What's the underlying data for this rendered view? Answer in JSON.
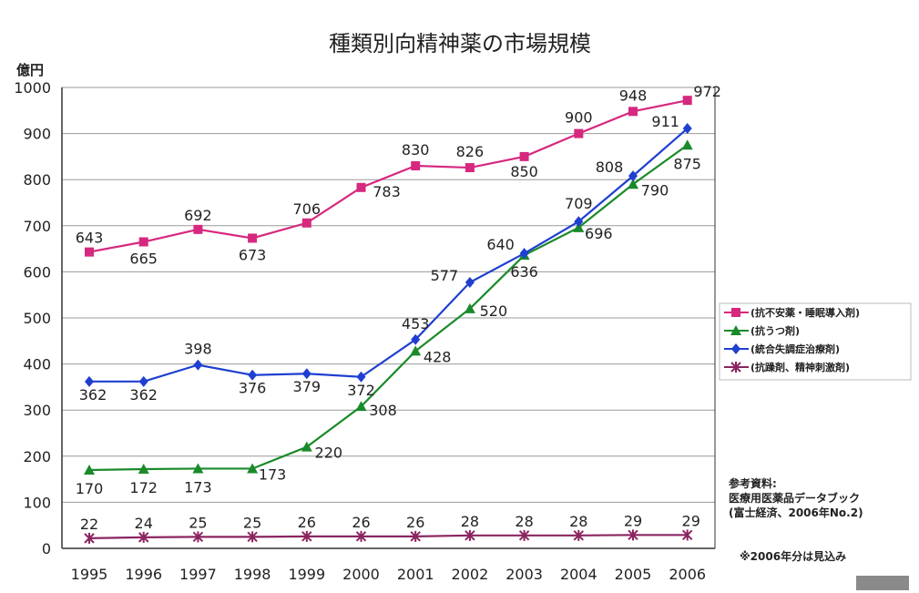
{
  "chart_data": {
    "type": "line",
    "title": "種類別向精神薬の市場規模",
    "ylabel": "億円",
    "xlabel": "",
    "categories": [
      "1995",
      "1996",
      "1997",
      "1998",
      "1999",
      "2000",
      "2001",
      "2002",
      "2003",
      "2004",
      "2005",
      "2006"
    ],
    "ylim": [
      0,
      1000
    ],
    "yticks": [
      "0",
      "100",
      "200",
      "300",
      "400",
      "500",
      "600",
      "700",
      "800",
      "900",
      "1000"
    ],
    "grid": true,
    "legend_placement": "right",
    "series": [
      {
        "name": "(抗不安薬・睡眠導入剤)",
        "color": "#d6287f",
        "marker": "square",
        "values": [
          643,
          665,
          692,
          673,
          706,
          783,
          830,
          826,
          850,
          900,
          948,
          972
        ]
      },
      {
        "name": "(抗うつ剤)",
        "color": "#1a8a2a",
        "marker": "triangle",
        "values": [
          170,
          172,
          173,
          173,
          220,
          308,
          428,
          520,
          636,
          696,
          790,
          875
        ]
      },
      {
        "name": "(統合失調症治療剤)",
        "color": "#1f3fd0",
        "marker": "diamond",
        "values": [
          362,
          362,
          398,
          376,
          379,
          372,
          453,
          577,
          640,
          709,
          808,
          911
        ]
      },
      {
        "name": "(抗躁剤、精神刺激剤)",
        "color": "#8a2560",
        "marker": "star",
        "values": [
          22,
          24,
          25,
          25,
          26,
          26,
          26,
          28,
          28,
          28,
          29,
          29
        ]
      }
    ]
  },
  "notes": {
    "source_lines": [
      "参考資料:",
      "医療用医薬品データブック",
      "(富士経済、2006年No.2)"
    ],
    "estimate": "※2006年分は見込み"
  }
}
